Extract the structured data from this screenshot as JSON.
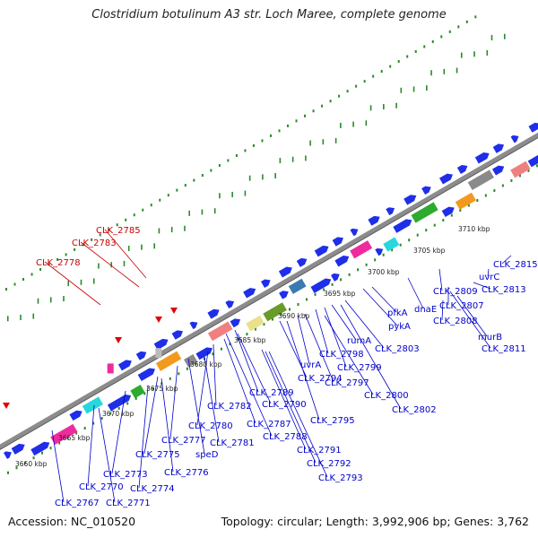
{
  "title": "Clostridium botulinum A3 str. Loch Maree, complete genome",
  "footer": {
    "accession": "Accession: NC_010520",
    "summary": "Topology: circular; Length: 3,992,906 bp; Genes: 3,762"
  },
  "colors": {
    "gene_blue": "#1f2ee8",
    "label_blue": "#0000cc",
    "label_red": "#cc0000",
    "backbone": "#8c8c8c",
    "gc_dots": "#2a8a2a",
    "magenta": "#ee2b9c",
    "cyan": "#25d8dc",
    "green": "#2eaa2e",
    "orange": "#f29a1e",
    "grey": "#8a8a8a",
    "salmon": "#f08080",
    "khaki": "#e9e08a",
    "olive": "#6a9a2a",
    "steel": "#3a7ab0"
  },
  "kbp_ticks": [
    "3660 kbp",
    "3665 kbp",
    "3670 kbp",
    "3675 kbp",
    "3680 kbp",
    "3685 kbp",
    "3690 kbp",
    "3695 kbp",
    "3700 kbp",
    "3705 kbp",
    "3710 kbp"
  ],
  "gene_labels": [
    {
      "text": "CLK_2785",
      "color": "red"
    },
    {
      "text": "CLK_2783",
      "color": "red"
    },
    {
      "text": "CLK_2778",
      "color": "red"
    },
    {
      "text": "CLK_2815",
      "color": "blue"
    },
    {
      "text": "uvrC",
      "color": "blue"
    },
    {
      "text": "CLK_2813",
      "color": "blue"
    },
    {
      "text": "CLK_2809",
      "color": "blue"
    },
    {
      "text": "CLK_2807",
      "color": "blue"
    },
    {
      "text": "CLK_2808",
      "color": "blue"
    },
    {
      "text": "murB",
      "color": "blue"
    },
    {
      "text": "CLK_2811",
      "color": "blue"
    },
    {
      "text": "dnaE",
      "color": "blue"
    },
    {
      "text": "pfkA",
      "color": "blue"
    },
    {
      "text": "pykA",
      "color": "blue"
    },
    {
      "text": "rumA",
      "color": "blue"
    },
    {
      "text": "CLK_2803",
      "color": "blue"
    },
    {
      "text": "CLK_2798",
      "color": "blue"
    },
    {
      "text": "CLK_2799",
      "color": "blue"
    },
    {
      "text": "uvrA",
      "color": "blue"
    },
    {
      "text": "CLK_2794",
      "color": "blue"
    },
    {
      "text": "CLK_2797",
      "color": "blue"
    },
    {
      "text": "CLK_2800",
      "color": "blue"
    },
    {
      "text": "CLK_2802",
      "color": "blue"
    },
    {
      "text": "CLK_2789",
      "color": "blue"
    },
    {
      "text": "CLK_2790",
      "color": "blue"
    },
    {
      "text": "CLK_2782",
      "color": "blue"
    },
    {
      "text": "CLK_2795",
      "color": "blue"
    },
    {
      "text": "CLK_2787",
      "color": "blue"
    },
    {
      "text": "CLK_2788",
      "color": "blue"
    },
    {
      "text": "CLK_2780",
      "color": "blue"
    },
    {
      "text": "CLK_2781",
      "color": "blue"
    },
    {
      "text": "CLK_2791",
      "color": "blue"
    },
    {
      "text": "CLK_2792",
      "color": "blue"
    },
    {
      "text": "CLK_2793",
      "color": "blue"
    },
    {
      "text": "CLK_2777",
      "color": "blue"
    },
    {
      "text": "speD",
      "color": "blue"
    },
    {
      "text": "CLK_2775",
      "color": "blue"
    },
    {
      "text": "CLK_2776",
      "color": "blue"
    },
    {
      "text": "CLK_2773",
      "color": "blue"
    },
    {
      "text": "CLK_2774",
      "color": "blue"
    },
    {
      "text": "CLK_2770",
      "color": "blue"
    },
    {
      "text": "CLK_2771",
      "color": "blue"
    },
    {
      "text": "CLK_2767",
      "color": "blue"
    }
  ]
}
